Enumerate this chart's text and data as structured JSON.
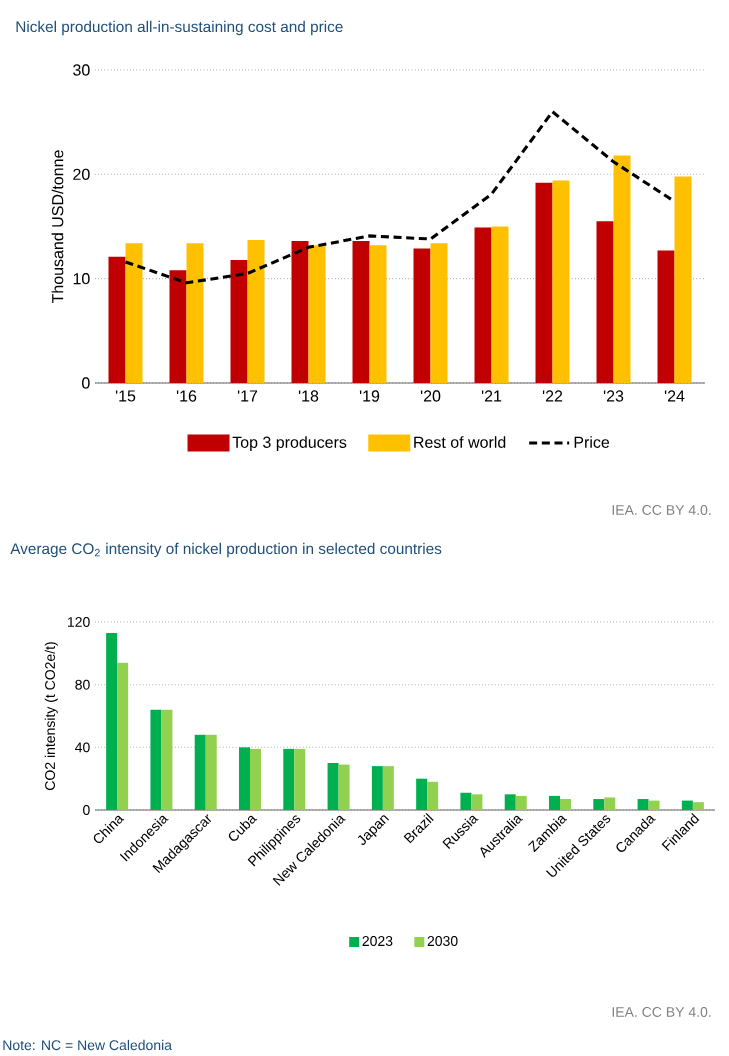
{
  "chart_data": [
    {
      "type": "bar",
      "title": "Nickel production all-in-sustaining cost and price",
      "ylabel": "Thousand USD/tonne",
      "categories": [
        "'15",
        "'16",
        "'17",
        "'18",
        "'19",
        "'20",
        "'21",
        "'22",
        "'23",
        "'24"
      ],
      "series": [
        {
          "name": "Top 3 producers",
          "color": "#c00000",
          "values": [
            12.1,
            10.8,
            11.8,
            13.6,
            13.6,
            12.9,
            14.9,
            19.2,
            15.5,
            12.7
          ]
        },
        {
          "name": "Rest of world",
          "color": "#ffc000",
          "values": [
            13.4,
            13.4,
            13.7,
            13.2,
            13.2,
            13.4,
            15.0,
            19.4,
            21.8,
            19.8
          ]
        },
        {
          "name": "Price",
          "color": "#000000",
          "type": "line",
          "line_style": "dashed",
          "values": [
            11.6,
            9.6,
            10.5,
            13.0,
            14.1,
            13.8,
            18.1,
            26.0,
            21.2,
            17.4
          ]
        }
      ],
      "ylim": [
        0,
        30
      ],
      "yticks": [
        0,
        10,
        20,
        30
      ],
      "grid": "y",
      "legend": "bottom",
      "annotations": [
        "IEA. CC BY 4.0."
      ]
    },
    {
      "type": "bar",
      "title": "Average CO$_{2}$ intensity of nickel production in selected countries",
      "ylabel": "CO2 intensity (t CO2e/t)",
      "categories": [
        "China",
        "Indonesia",
        "Madagascar",
        "Cuba",
        "Philippines",
        "New Caledonia",
        "Japan",
        "Brazil",
        "Russia",
        "Australia",
        "Zambia",
        "United States",
        "Canada",
        "Finland"
      ],
      "series": [
        {
          "name": "2023",
          "color": "#00b050",
          "values": [
            113,
            64,
            48,
            40,
            39,
            30,
            28,
            20,
            11,
            10,
            9,
            7,
            7,
            6
          ]
        },
        {
          "name": "2030",
          "color": "#92d050",
          "values": [
            94,
            64,
            48,
            39,
            39,
            29,
            28,
            18,
            10,
            9,
            7,
            8,
            6,
            5
          ]
        }
      ],
      "ylim": [
        0,
        120
      ],
      "yticks": [
        0,
        40,
        80,
        120
      ],
      "grid": "y",
      "legend": "bottom",
      "annotations": [
        "IEA. CC BY 4.0.",
        "Note: NC = New Caledonia"
      ]
    }
  ]
}
